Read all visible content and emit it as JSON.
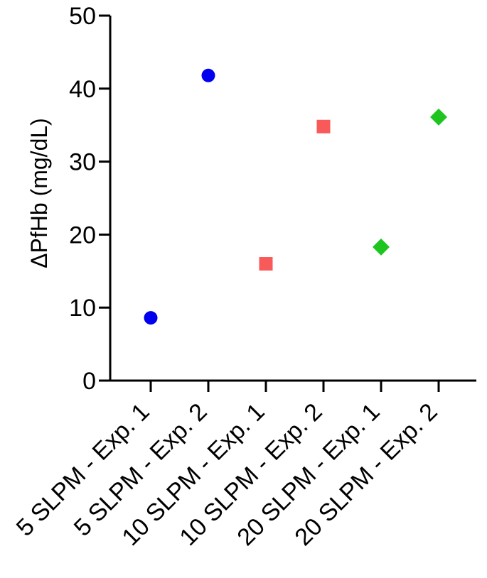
{
  "chart_data": {
    "type": "scatter",
    "title": "",
    "xlabel": "",
    "ylabel": "ΔPfHb (mg/dL)",
    "ylim": [
      0,
      50
    ],
    "yticks": [
      0,
      10,
      20,
      30,
      40,
      50
    ],
    "categories": [
      "5 SLPM - Exp. 1",
      "5 SLPM - Exp. 2",
      "10 SLPM - Exp. 1",
      "10 SLPM - Exp. 2",
      "20 SLPM - Exp. 1",
      "20 SLPM - Exp. 2"
    ],
    "points": [
      {
        "category": "5 SLPM - Exp. 1",
        "value": 8.6,
        "marker": "circle",
        "color": "#0000ee"
      },
      {
        "category": "5 SLPM - Exp. 2",
        "value": 41.8,
        "marker": "circle",
        "color": "#0000ee"
      },
      {
        "category": "10 SLPM - Exp. 1",
        "value": 16.0,
        "marker": "square",
        "color": "#f85a5a"
      },
      {
        "category": "10 SLPM - Exp. 2",
        "value": 34.8,
        "marker": "square",
        "color": "#f85a5a"
      },
      {
        "category": "20 SLPM - Exp. 1",
        "value": 18.3,
        "marker": "diamond",
        "color": "#1fc51f"
      },
      {
        "category": "20 SLPM - Exp. 2",
        "value": 36.1,
        "marker": "diamond",
        "color": "#1fc51f"
      }
    ],
    "grid": false,
    "legend": "none"
  }
}
